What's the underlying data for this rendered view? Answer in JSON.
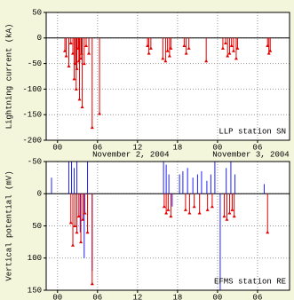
{
  "chart_data": [
    {
      "type": "stem",
      "ylabel": "Lightning current (kA)",
      "annotation": "LLP station SN",
      "xlim": [
        -1.7,
        34.8
      ],
      "ylim": [
        -200,
        50
      ],
      "inverted": false,
      "xticks": [
        {
          "value": 0,
          "label": "00"
        },
        {
          "value": 6,
          "label": "06"
        },
        12,
        18,
        {
          "value": 24,
          "label": "00"
        },
        {
          "value": 30,
          "label": "06"
        }
      ],
      "yticks": [
        50,
        0,
        -50,
        -100,
        -150,
        -200
      ],
      "date_labels": [
        {
          "value": 11,
          "label": "November 2, 2004"
        },
        {
          "value": 29,
          "label": "November 3, 2004"
        }
      ],
      "grid": true,
      "series": [
        {
          "color": "#e00000",
          "marker": "triangle",
          "x": [
            1.1,
            1.3,
            1.7,
            2.0,
            2.3,
            2.5,
            2.7,
            2.8,
            2.9,
            3.1,
            3.2,
            3.3,
            3.5,
            3.6,
            3.7,
            4.0,
            4.3,
            4.7,
            5.2,
            6.3,
            13.5,
            13.7,
            14.0,
            15.8,
            16.2,
            16.5,
            16.8,
            17.0,
            19.0,
            19.3,
            19.7,
            22.3,
            24.8,
            25.2,
            25.5,
            25.8,
            26.1,
            26.4,
            26.8,
            27.0,
            31.5,
            31.7,
            31.9
          ],
          "values": [
            -25,
            -35,
            -55,
            -10,
            -30,
            -80,
            -50,
            -100,
            -60,
            -20,
            -45,
            -120,
            -40,
            -30,
            -135,
            -50,
            -15,
            -30,
            -175,
            -148,
            -15,
            -30,
            -20,
            -40,
            -45,
            -25,
            -35,
            -20,
            -15,
            -30,
            -20,
            -45,
            -20,
            -10,
            -35,
            -30,
            -15,
            -25,
            -40,
            -20,
            -15,
            -30,
            -25
          ]
        }
      ]
    },
    {
      "type": "stem",
      "ylabel": "Vertical potential (mV)",
      "annotation": "EFMS station RE",
      "xlim": [
        -1.7,
        34.8
      ],
      "ylim": [
        150,
        -50
      ],
      "inverted": true,
      "xticks": [
        {
          "value": 0,
          "label": "00"
        },
        {
          "value": 6,
          "label": "06"
        },
        12,
        18,
        {
          "value": 24,
          "label": "00"
        },
        {
          "value": 30,
          "label": "06"
        }
      ],
      "yticks": [
        -50,
        0,
        50,
        100,
        150
      ],
      "grid": true,
      "series": [
        {
          "color": "#2020ff",
          "marker": "none",
          "x": [
            -0.9,
            1.7,
            2.1,
            2.5,
            2.9,
            3.4,
            4.0,
            4.5,
            5.2,
            15.9,
            16.3,
            16.7,
            17.2,
            18.3,
            18.8,
            19.5,
            20.3,
            21.0,
            21.6,
            22.4,
            23.0,
            23.6,
            24.4,
            25.3,
            26.0,
            26.6,
            31.0
          ],
          "values": [
            -25,
            -50,
            -50,
            -40,
            -50,
            60,
            100,
            -50,
            120,
            -50,
            -45,
            -30,
            20,
            -30,
            -35,
            -40,
            -25,
            -30,
            -35,
            -20,
            -30,
            -50,
            150,
            -40,
            -50,
            -30,
            -15
          ]
        },
        {
          "color": "#e00000",
          "marker": "triangle",
          "x": [
            2.0,
            2.3,
            2.6,
            2.9,
            3.2,
            3.5,
            3.8,
            4.1,
            4.5,
            5.2,
            16.0,
            16.3,
            16.6,
            17.0,
            19.2,
            19.8,
            20.5,
            21.3,
            22.5,
            23.2,
            25.0,
            25.4,
            25.8,
            26.2,
            26.5,
            31.5
          ],
          "values": [
            45,
            80,
            50,
            60,
            35,
            75,
            40,
            30,
            60,
            140,
            20,
            30,
            25,
            35,
            25,
            30,
            20,
            30,
            25,
            20,
            35,
            40,
            30,
            25,
            35,
            60
          ]
        }
      ]
    }
  ]
}
